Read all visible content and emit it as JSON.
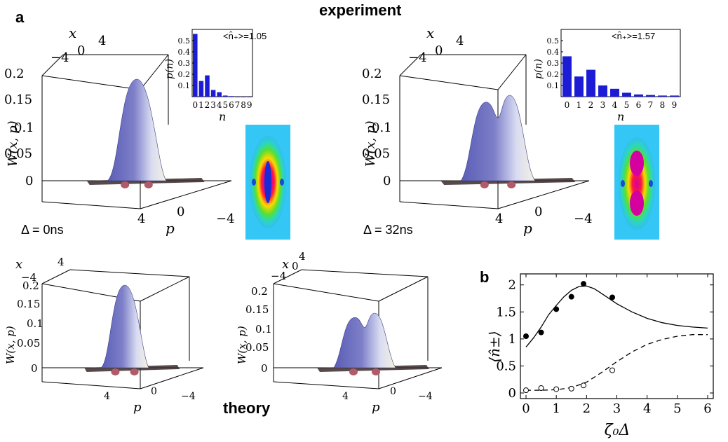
{
  "titles": {
    "panel_a": "a",
    "panel_b": "b",
    "experiment": "experiment",
    "theory": "theory"
  },
  "plot3d_axes": {
    "x_label": "x",
    "p_label": "p",
    "w_label": "W(x, p)",
    "x_ticks": [
      "4",
      "0",
      "−4"
    ],
    "p_ticks": [
      "4",
      "0",
      "−4"
    ],
    "w_ticks_exp": [
      "0.2",
      "0.15",
      "0.1",
      "0.05",
      "0"
    ],
    "w_ticks_theory": [
      "0.2",
      "0.15",
      "0.1",
      "0.05",
      "0"
    ]
  },
  "experiment_panels": [
    {
      "delta_label": "Δ = 0ns",
      "peaks": "single"
    },
    {
      "delta_label": "Δ = 32ns",
      "peaks": "double"
    }
  ],
  "theory_panels": [
    {
      "peaks": "single"
    },
    {
      "peaks": "double"
    }
  ],
  "insets": [
    {
      "mean_label": "<n̂₊>=1.05",
      "chart_data": {
        "type": "bar",
        "categories": [
          "0",
          "1",
          "2",
          "3",
          "4",
          "5",
          "6",
          "7",
          "8",
          "9"
        ],
        "values": [
          0.56,
          0.14,
          0.19,
          0.06,
          0.04,
          0.01,
          0.005,
          0.0,
          0.0,
          0.0
        ],
        "xlabel": "n",
        "ylabel": "p(n)",
        "ylim": [
          0,
          0.6
        ],
        "yticks": [
          "0.5",
          "0.4",
          "0.3",
          "0.2",
          "0.1"
        ],
        "color": "#1c1cd6"
      }
    },
    {
      "mean_label": "<n̂₊>=1.57",
      "chart_data": {
        "type": "bar",
        "categories": [
          "0",
          "1",
          "2",
          "3",
          "4",
          "5",
          "6",
          "7",
          "8",
          "9"
        ],
        "values": [
          0.36,
          0.18,
          0.24,
          0.1,
          0.07,
          0.035,
          0.02,
          0.015,
          0.01,
          0.01
        ],
        "xlabel": "n",
        "ylabel": "p(n)",
        "ylim": [
          0,
          0.6
        ],
        "yticks": [
          "0.5",
          "0.4",
          "0.3",
          "0.2",
          "0.1"
        ],
        "color": "#1c1cd6"
      }
    }
  ],
  "panel_b": {
    "chart_data": {
      "type": "line",
      "xlabel": "ζ₀Δ",
      "ylabel": "⟨n̂±⟩",
      "xlim": [
        0,
        6
      ],
      "ylim": [
        0,
        2.1
      ],
      "xticks": [
        "0",
        "1",
        "2",
        "3",
        "4",
        "5",
        "6"
      ],
      "yticks": [
        "0",
        "0.5",
        "1",
        "1.5",
        "2"
      ],
      "series": [
        {
          "style": "solid",
          "x": [
            0,
            0.25,
            0.5,
            0.75,
            1.0,
            1.25,
            1.5,
            1.75,
            2.0,
            2.25,
            2.5,
            3.0,
            3.5,
            4.0,
            4.5,
            5.0,
            5.5,
            6.0
          ],
          "y": [
            0.85,
            1.02,
            1.22,
            1.45,
            1.62,
            1.78,
            1.9,
            1.97,
            1.98,
            1.93,
            1.84,
            1.65,
            1.5,
            1.38,
            1.3,
            1.25,
            1.22,
            1.2
          ]
        },
        {
          "style": "dashed",
          "x": [
            0,
            0.5,
            1.0,
            1.5,
            2.0,
            2.5,
            3.0,
            3.5,
            4.0,
            4.5,
            5.0,
            5.5,
            6.0
          ],
          "y": [
            0.05,
            0.05,
            0.06,
            0.1,
            0.2,
            0.38,
            0.58,
            0.76,
            0.9,
            0.99,
            1.05,
            1.08,
            1.08
          ]
        },
        {
          "style": "filled-dots",
          "x": [
            0,
            0.5,
            1.0,
            1.5,
            1.9,
            2.85
          ],
          "y": [
            1.05,
            1.12,
            1.55,
            1.78,
            2.02,
            1.77
          ]
        },
        {
          "style": "open-dots",
          "x": [
            0,
            0.5,
            1.0,
            1.5,
            1.9,
            2.85
          ],
          "y": [
            0.05,
            0.09,
            0.07,
            0.08,
            0.14,
            0.42
          ]
        }
      ]
    }
  },
  "colors": {
    "surface": "#7d7fc8",
    "surface_light": "#d9dcf2",
    "bars": "#1c1cd6"
  }
}
